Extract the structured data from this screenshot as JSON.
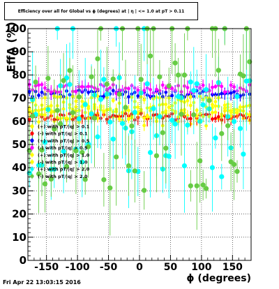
{
  "title": "Efficiency over all for Global vs ϕ (degrees) at | η | <= 1.0 at pT > 0.11",
  "timestamp": "Fri Apr 22 13:03:15 2016",
  "chart_data": {
    "type": "scatter",
    "title": "Efficiency over all for Global vs ϕ (degrees) at | η | <= 1.0 at pT > 0.11",
    "xlabel": "ϕ (degrees)",
    "ylabel": "EffA (%)",
    "xlim": [
      -180,
      180
    ],
    "ylim": [
      0,
      100
    ],
    "x_ticks": [
      -150,
      -100,
      -50,
      0,
      50,
      100,
      150
    ],
    "y_ticks": [
      0,
      10,
      20,
      30,
      40,
      50,
      60,
      70,
      80,
      90,
      100
    ],
    "grid": true,
    "legend_position": "left-middle",
    "series": [
      {
        "name": "(+) with pT/|q| > 0.1",
        "color": "#ffff00",
        "base": 63,
        "spread": 5
      },
      {
        "name": "(-) with pT/|q| > 0.1",
        "color": "#ff0000",
        "base": 62,
        "spread": 1.5
      },
      {
        "name": "(+) with pT/|q| > 0.5",
        "color": "#0000ff",
        "base": 72,
        "spread": 1.5
      },
      {
        "name": "(-) with pT/|q| > 0.5",
        "color": "#ff00ff",
        "base": 74,
        "spread": 2
      },
      {
        "name": "(+) with pT/|q| > 1.0",
        "color": "#ffff00",
        "base": 67,
        "spread": 4
      },
      {
        "name": "(-) with pT/|q| > 1.0",
        "color": "#ffff00",
        "base": 64,
        "spread": 3
      },
      {
        "name": "(+) with pT/|q| > 2.0",
        "color": "#00ffff",
        "base": 58,
        "spread": 22
      },
      {
        "name": "(-) with pT/|q| > 2.0",
        "color": "#66cc44",
        "base": 60,
        "spread": 30
      }
    ],
    "legend_labels": [
      "(+) with pT/|q| > 0.1",
      "(-) with pT/|q| > 0.1",
      "(+) with pT/|q| > 0.5",
      "(-) with pT/|q| > 0.5",
      "(+) with pT/|q| > 1.0",
      "(-) with pT/|q| > 1.0",
      "(+) with pT/|q| > 2.0",
      "(-) with pT/|q| > 2.0"
    ]
  }
}
